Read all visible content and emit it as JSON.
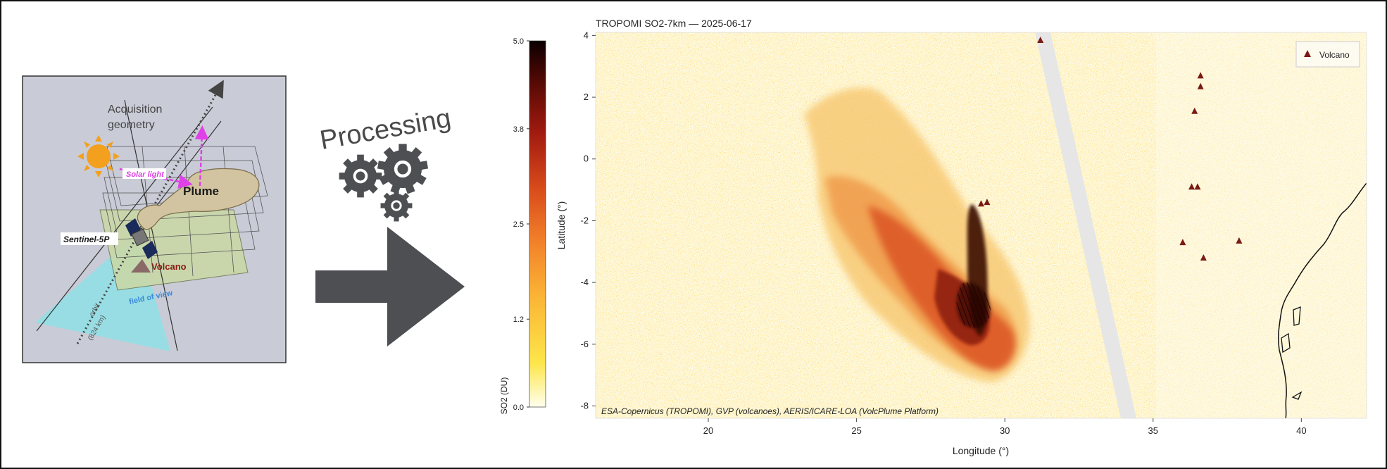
{
  "left_panel": {
    "title_line1": "Acquisition",
    "title_line2": "geometry",
    "solar_light": "Solar light",
    "plume": "Plume",
    "satellite": "Sentinel-5P",
    "volcano": "Volcano",
    "field_of_view": "field of view",
    "orbit_line1": "orbit",
    "orbit_line2": "(824 km)"
  },
  "processing": {
    "label": "Processing"
  },
  "colors": {
    "panel_bg": "#c9cbd6",
    "gear": "#4d4f52",
    "arrow": "#4d4f52",
    "plume": "#d2c4a0",
    "field_of_view": "#8fe0e6",
    "ground": "#c9d8a8",
    "solar_arrow": "#e040e8",
    "sun": "#f2a01e",
    "volcano_marker": "#7a1a14"
  },
  "chart_data": {
    "type": "heatmap",
    "title": "TROPOMI SO2-7km — 2025-06-17",
    "xlabel": "Longitude (°)",
    "ylabel": "Latitude (°)",
    "xlim": [
      16.2,
      42.2
    ],
    "ylim": [
      -8.4,
      4.1
    ],
    "x_ticks": [
      20,
      25,
      30,
      35,
      40
    ],
    "y_ticks": [
      4,
      2,
      0,
      -2,
      -4,
      -6,
      -8
    ],
    "colorbar": {
      "label": "SO2 (DU)",
      "range": [
        0.0,
        5.0
      ],
      "tick_labels": [
        "5.0",
        "3.8",
        "2.5",
        "1.2",
        "0.0"
      ],
      "tick_values": [
        5.0,
        3.8,
        2.5,
        1.2,
        0.0
      ],
      "colors": [
        "#ffffee",
        "#fde64a",
        "#fbb535",
        "#f2812a",
        "#d84a1a",
        "#a01a10",
        "#5a0a05",
        "#0a0000"
      ]
    },
    "legend": {
      "entries": [
        "Volcano"
      ],
      "placement": "top-right"
    },
    "volcanoes": [
      {
        "lon": 31.2,
        "lat": 3.85
      },
      {
        "lon": 29.2,
        "lat": -1.45
      },
      {
        "lon": 29.4,
        "lat": -1.4
      },
      {
        "lon": 36.6,
        "lat": 2.7
      },
      {
        "lon": 36.6,
        "lat": 2.35
      },
      {
        "lon": 36.4,
        "lat": 1.55
      },
      {
        "lon": 36.3,
        "lat": -0.9
      },
      {
        "lon": 36.5,
        "lat": -0.9
      },
      {
        "lon": 36.0,
        "lat": -2.7
      },
      {
        "lon": 37.9,
        "lat": -2.65
      },
      {
        "lon": 36.7,
        "lat": -3.2
      }
    ],
    "attribution": "ESA-Copernicus (TROPOMI), GVP (volcanoes), AERIS/ICARE-LOA (VolcPlume Platform)"
  }
}
